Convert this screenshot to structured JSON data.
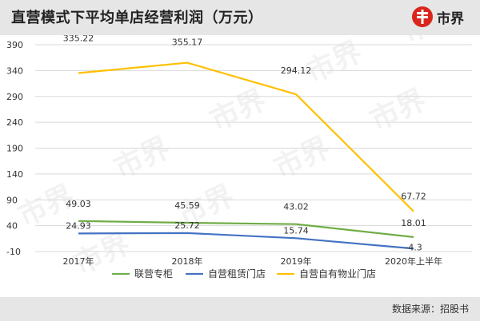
{
  "title": "直营模式下平均单店经营利润（万元）",
  "logo": {
    "text": "市界",
    "icon": "shijie-logo-icon"
  },
  "watermark": "市界",
  "source": "数据来源：招股书",
  "colors": {
    "联营专柜": "#70ad47",
    "自营租赁门店": "#4472c4",
    "自营自有物业门店": "#ffc000",
    "grid": "#d9d9d9",
    "label": "#333333"
  },
  "chart_data": {
    "type": "line",
    "categories": [
      "2017年",
      "2018年",
      "2019年",
      "2020年上半年"
    ],
    "y_ticks": [
      -10,
      40,
      90,
      140,
      190,
      240,
      290,
      340,
      390
    ],
    "ylim": [
      -10,
      390
    ],
    "grid": true,
    "legend_position": "bottom",
    "series": [
      {
        "name": "联营专柜",
        "values": [
          49.03,
          45.59,
          43.02,
          18.01
        ],
        "labels": [
          "49.03",
          "45.59",
          "43.02",
          "18.01"
        ]
      },
      {
        "name": "自营租赁门店",
        "values": [
          24.93,
          25.72,
          15.74,
          -4.3
        ],
        "labels": [
          "24.93",
          "25.72",
          "15.74",
          "-4.3"
        ]
      },
      {
        "name": "自营自有物业门店",
        "values": [
          335.22,
          355.17,
          294.12,
          67.72
        ],
        "labels": [
          "335.22",
          "355.17",
          "294.12",
          "67.72"
        ]
      }
    ]
  }
}
